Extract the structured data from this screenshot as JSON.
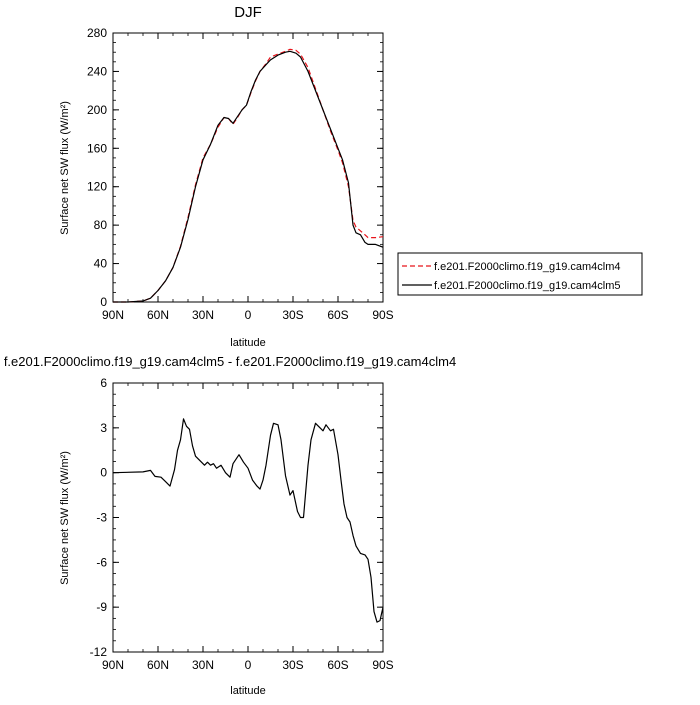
{
  "chart_data": [
    {
      "type": "line",
      "title": "DJF",
      "xlabel": "latitude",
      "ylabel": "Surface net SW flux (W/m²)",
      "xlim": [
        90,
        -90
      ],
      "ylim": [
        0,
        280
      ],
      "x_ticks": [
        90,
        60,
        30,
        0,
        -30,
        -60,
        -90
      ],
      "x_tick_labels": [
        "90N",
        "60N",
        "30N",
        "0",
        "30S",
        "60S",
        "90S"
      ],
      "y_ticks": [
        0,
        40,
        80,
        120,
        160,
        200,
        240,
        280
      ],
      "y_tick_labels": [
        "0",
        "40",
        "80",
        "120",
        "160",
        "200",
        "240",
        "280"
      ],
      "legend_position": "right",
      "series": [
        {
          "name": "f.e201.F2000climo.f19_g19.cam4clm4",
          "color": "#e8141b",
          "dash": "dashed",
          "x": [
            90,
            80,
            70,
            65,
            60,
            55,
            50,
            45,
            40,
            35,
            30,
            25,
            20,
            16,
            13,
            10,
            7,
            4,
            1,
            -2,
            -5,
            -8,
            -12,
            -15,
            -20,
            -25,
            -28,
            -32,
            -35,
            -40,
            -45,
            -50,
            -55,
            -60,
            -63,
            -67,
            -70,
            -72,
            -75,
            -78,
            -80,
            -85,
            -90
          ],
          "y": [
            0,
            0,
            1,
            4,
            12,
            22,
            36,
            58,
            88,
            122,
            150,
            164,
            182,
            192,
            191,
            185,
            192,
            200,
            205,
            218,
            230,
            240,
            248,
            255,
            258,
            261,
            263,
            262,
            258,
            244,
            222,
            200,
            178,
            158,
            145,
            120,
            85,
            78,
            74,
            70,
            67,
            67,
            68
          ]
        },
        {
          "name": "f.e201.F2000climo.f19_g19.cam4clm5",
          "color": "#000000",
          "dash": "solid",
          "x": [
            90,
            80,
            70,
            65,
            60,
            55,
            50,
            45,
            40,
            35,
            30,
            25,
            20,
            16,
            13,
            10,
            7,
            4,
            1,
            -2,
            -5,
            -8,
            -12,
            -15,
            -20,
            -25,
            -28,
            -32,
            -35,
            -40,
            -45,
            -50,
            -55,
            -60,
            -63,
            -67,
            -70,
            -72,
            -75,
            -78,
            -80,
            -85,
            -90
          ],
          "y": [
            0,
            0,
            1,
            4,
            12,
            22,
            36,
            57,
            86,
            120,
            148,
            164,
            184,
            192,
            191,
            186,
            193,
            200,
            205,
            219,
            231,
            240,
            247,
            252,
            257,
            260,
            261,
            259,
            255,
            240,
            220,
            200,
            180,
            160,
            148,
            124,
            80,
            72,
            70,
            62,
            60,
            60,
            57
          ]
        }
      ]
    },
    {
      "type": "line",
      "title": "f.e201.F2000climo.f19_g19.cam4clm5 - f.e201.F2000climo.f19_g19.cam4clm4",
      "xlabel": "latitude",
      "ylabel": "Surface net SW flux (W/m²)",
      "xlim": [
        90,
        -90
      ],
      "ylim": [
        -12,
        6
      ],
      "x_ticks": [
        90,
        60,
        30,
        0,
        -30,
        -60,
        -90
      ],
      "x_tick_labels": [
        "90N",
        "60N",
        "30N",
        "0",
        "30S",
        "60S",
        "90S"
      ],
      "y_ticks": [
        -12,
        -9,
        -6,
        -3,
        0,
        3,
        6
      ],
      "y_tick_labels": [
        "-12",
        "-9",
        "-6",
        "-3",
        "0",
        "3",
        "6"
      ],
      "series": [
        {
          "color": "#000000",
          "dash": "solid",
          "x": [
            90,
            70,
            65,
            62,
            58,
            55,
            52,
            49,
            47,
            45,
            43,
            41,
            39,
            37,
            35,
            32,
            29,
            27,
            25,
            23,
            21,
            18,
            15,
            12,
            10,
            8,
            6,
            3,
            0,
            -3,
            -6,
            -8,
            -10,
            -12,
            -15,
            -17,
            -20,
            -22,
            -25,
            -28,
            -30,
            -33,
            -35,
            -37,
            -40,
            -42,
            -45,
            -48,
            -50,
            -52,
            -55,
            -57,
            -60,
            -62,
            -64,
            -66,
            -68,
            -70,
            -72,
            -75,
            -78,
            -80,
            -82,
            -84,
            -86,
            -88,
            -90
          ],
          "y": [
            0,
            0.05,
            0.15,
            -0.25,
            -0.3,
            -0.6,
            -0.9,
            0.2,
            1.5,
            2.2,
            3.6,
            3.1,
            2.9,
            1.8,
            1.1,
            0.8,
            0.5,
            0.7,
            0.5,
            0.6,
            0.3,
            0.5,
            0,
            -0.3,
            0.6,
            0.9,
            1.2,
            0.7,
            0.3,
            -0.5,
            -0.9,
            -1.1,
            -0.5,
            0.5,
            2.5,
            3.3,
            3.2,
            2.2,
            -0.2,
            -1.5,
            -1.2,
            -2.6,
            -3,
            -3,
            0.5,
            2.2,
            3.3,
            3.0,
            2.8,
            3.2,
            2.8,
            2.9,
            1.2,
            -0.5,
            -2.1,
            -3,
            -3.3,
            -4.2,
            -4.9,
            -5.4,
            -5.5,
            -5.8,
            -7,
            -9.3,
            -10,
            -9.9,
            -9
          ]
        }
      ]
    }
  ]
}
